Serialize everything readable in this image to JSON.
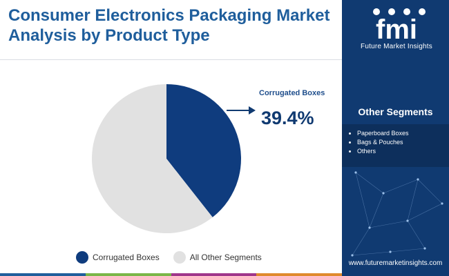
{
  "header": {
    "title": "Consumer Electronics Packaging Market Analysis by Product Type"
  },
  "brand": {
    "logo_letters": "fmi",
    "name": "Future Market Insights",
    "website": "www.futuremarketinsights.com"
  },
  "sidebar": {
    "heading": "Other Segments",
    "items": [
      "Paperboard Boxes",
      "Bags & Pouches",
      "Others"
    ]
  },
  "callout": {
    "label": "Corrugated Boxes",
    "value": "39.4%"
  },
  "chart_data": {
    "type": "pie",
    "title": "Consumer Electronics Packaging Market Analysis by Product Type",
    "labels": [
      "Corrugated Boxes",
      "All Other Segments"
    ],
    "values": [
      39.4,
      60.6
    ],
    "colors": [
      "#0f3c7e",
      "#e1e1e1"
    ],
    "start_angle_deg": 0,
    "direction": "clockwise",
    "legend_position": "bottom"
  },
  "colors": {
    "title": "#1f5e9c",
    "sidebar_bg": "#103a71",
    "accent": "#0f3c7e",
    "stripe": [
      "#1f5e9c",
      "#7ab648",
      "#a0368b",
      "#e08a2c"
    ]
  }
}
